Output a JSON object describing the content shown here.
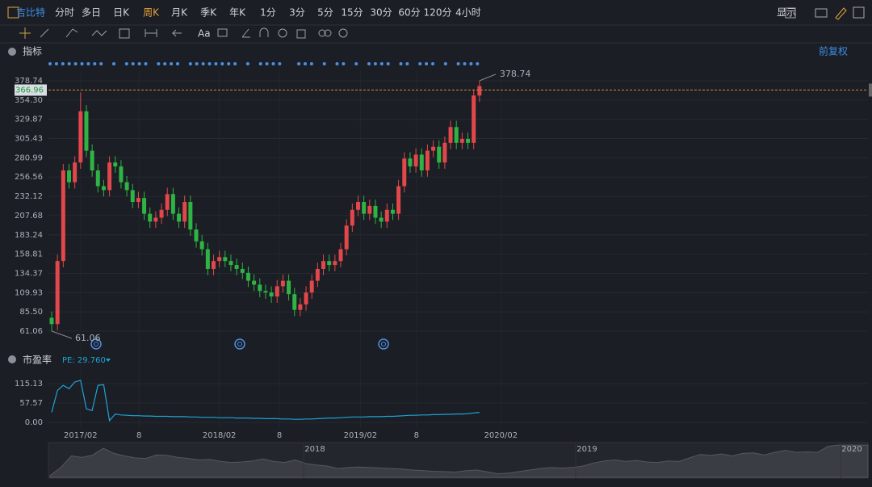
{
  "toolbar": {
    "items": [
      "吉比特",
      "分时",
      "多日",
      "日K",
      "周K",
      "月K",
      "季K",
      "年K",
      "1分",
      "3分",
      "5分",
      "15分",
      "30分",
      "60分",
      "120分",
      "4小时"
    ],
    "active": "周K",
    "display": "显示",
    "text_tool": "Aa"
  },
  "indicator_label": "指标",
  "adjust_label": "前复权",
  "chart_data": [
    {
      "type": "candlestick",
      "up_color": "#e2474b",
      "down_color": "#2fb344",
      "open": [
        78,
        70,
        150,
        265,
        250,
        275,
        340,
        290,
        265,
        245,
        240,
        275,
        270,
        250,
        240,
        225,
        230,
        210,
        200,
        205,
        215,
        235,
        210,
        200,
        225,
        190,
        175,
        165,
        140,
        150,
        155,
        150,
        145,
        140,
        135,
        125,
        120,
        112,
        110,
        105,
        118,
        125,
        108,
        88,
        95,
        110,
        125,
        140,
        150,
        145,
        150,
        165,
        195,
        215,
        225,
        210,
        220,
        205,
        200,
        215,
        210,
        245,
        280,
        270,
        285,
        265,
        290,
        295,
        275,
        300,
        320,
        300,
        305,
        300,
        360
      ],
      "high": [
        86,
        158,
        273,
        273,
        283,
        364,
        348,
        298,
        273,
        253,
        283,
        283,
        278,
        258,
        248,
        238,
        238,
        218,
        213,
        223,
        243,
        243,
        218,
        233,
        233,
        198,
        183,
        173,
        158,
        163,
        163,
        158,
        153,
        148,
        143,
        133,
        128,
        120,
        118,
        126,
        133,
        133,
        116,
        103,
        118,
        133,
        148,
        158,
        158,
        158,
        173,
        203,
        223,
        233,
        233,
        228,
        228,
        213,
        223,
        223,
        253,
        288,
        288,
        293,
        293,
        298,
        303,
        303,
        308,
        328,
        328,
        313,
        313,
        368,
        378.74
      ],
      "low": [
        61.06,
        62,
        142,
        242,
        242,
        267,
        282,
        257,
        237,
        232,
        232,
        262,
        242,
        232,
        217,
        217,
        202,
        192,
        192,
        197,
        207,
        202,
        192,
        192,
        182,
        167,
        157,
        132,
        132,
        142,
        142,
        137,
        132,
        127,
        117,
        112,
        104,
        102,
        97,
        97,
        110,
        100,
        80,
        80,
        87,
        102,
        117,
        132,
        137,
        137,
        142,
        157,
        187,
        207,
        202,
        202,
        197,
        192,
        192,
        202,
        202,
        237,
        262,
        262,
        257,
        257,
        282,
        267,
        267,
        292,
        292,
        292,
        292,
        292,
        352
      ],
      "close": [
        70,
        150,
        265,
        250,
        275,
        340,
        290,
        265,
        245,
        240,
        275,
        270,
        250,
        240,
        225,
        230,
        210,
        200,
        205,
        215,
        235,
        210,
        200,
        225,
        190,
        175,
        165,
        140,
        150,
        155,
        150,
        145,
        140,
        135,
        125,
        120,
        112,
        110,
        105,
        118,
        125,
        108,
        88,
        95,
        110,
        125,
        140,
        150,
        145,
        150,
        165,
        195,
        215,
        225,
        210,
        220,
        205,
        200,
        215,
        210,
        245,
        280,
        270,
        285,
        265,
        290,
        295,
        275,
        300,
        320,
        300,
        305,
        300,
        360,
        372
      ],
      "last_price": 366.96,
      "ylim": [
        38.5,
        391.04
      ],
      "yticks": [
        61.06,
        {
          "value": 85.5,
          "label": "85.50"
        },
        109.93,
        134.37,
        158.81,
        183.24,
        207.68,
        232.12,
        256.56,
        280.99,
        305.43,
        329.87,
        {
          "value": 354.3,
          "label": "354.30"
        },
        378.74
      ],
      "xlim": [
        -0.56,
        141.2
      ],
      "xticks": [
        {
          "value": 5,
          "label": "2017/02"
        },
        {
          "value": 15.1,
          "label": "8"
        },
        {
          "value": 29,
          "label": "2018/02"
        },
        {
          "value": 39.4,
          "label": "8"
        },
        {
          "value": 53.4,
          "label": "2019/02"
        },
        {
          "value": 63.1,
          "label": "8"
        },
        {
          "value": 77.7,
          "label": "2020/02"
        }
      ],
      "grid": true
    },
    {
      "type": "line",
      "title": "市盈率",
      "legend": "PE: 29.760",
      "color": "#1fa3d6",
      "values": [
        30,
        95,
        110,
        100,
        120,
        125,
        40,
        35,
        110,
        112,
        5,
        25,
        22,
        21,
        20,
        20,
        19,
        19,
        18,
        18,
        18,
        17,
        17,
        17,
        16,
        16,
        15,
        15,
        15,
        14,
        14,
        14,
        13,
        13,
        13,
        12,
        12,
        11,
        11,
        11,
        10,
        10,
        9,
        9,
        10,
        10,
        11,
        12,
        13,
        13,
        14,
        15,
        16,
        16,
        16,
        17,
        17,
        17,
        18,
        18,
        19,
        20,
        21,
        21,
        22,
        22,
        23,
        23,
        24,
        24,
        25,
        25,
        26,
        28,
        29.76
      ],
      "ylim": [
        -16.8,
        146.3
      ],
      "yticks": [
        {
          "value": 0,
          "label": "0.00"
        },
        57.57,
        115.13
      ]
    }
  ],
  "navigator": {
    "labels": [
      "2018",
      "2019",
      "2020"
    ]
  }
}
